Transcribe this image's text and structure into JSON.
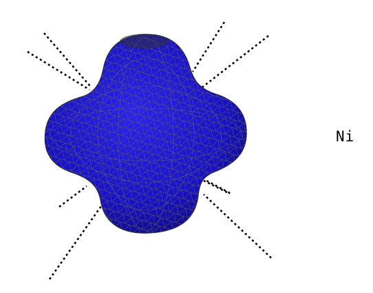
{
  "label": "Ni",
  "colors": {
    "surface": "#1a14d8",
    "mesh": "#555566",
    "axes": "#000000",
    "background": "#ffffff"
  }
}
